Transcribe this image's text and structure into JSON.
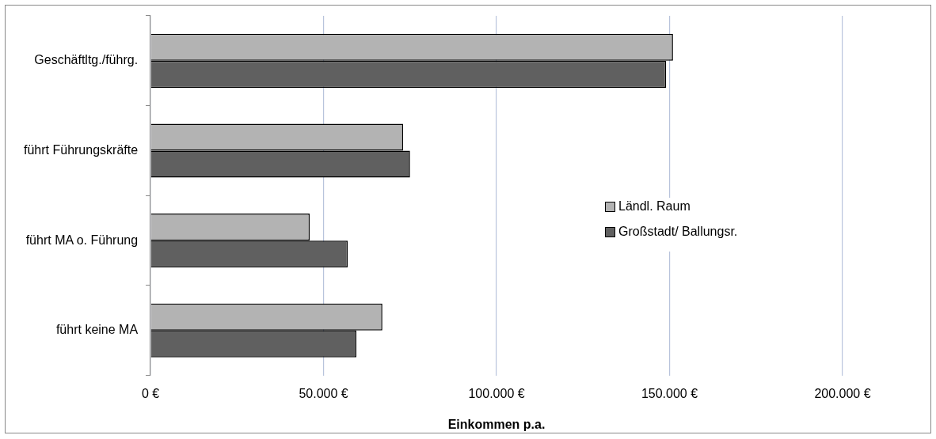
{
  "chart_data": {
    "type": "bar",
    "orientation": "horizontal",
    "xlabel": "Einkommen p.a.",
    "categories": [
      "Geschäftltg./führg.",
      "führt Führungskräfte",
      "führt MA o. Führung",
      "führt keine MA"
    ],
    "series": [
      {
        "name": "Ländl. Raum",
        "color": "#b3b3b3",
        "values": [
          151000,
          73000,
          46000,
          67000
        ]
      },
      {
        "name": "Großstadt/ Ballungsr.",
        "color": "#606060",
        "values": [
          149000,
          75000,
          57000,
          59500
        ]
      }
    ],
    "xlim": [
      0,
      200000
    ],
    "xticks": [
      {
        "value": 0,
        "label": "0 €"
      },
      {
        "value": 50000,
        "label": "50.000 €"
      },
      {
        "value": 100000,
        "label": "100.000 €"
      },
      {
        "value": 150000,
        "label": "150.000 €"
      },
      {
        "value": 200000,
        "label": "200.000 €"
      }
    ],
    "grid": "x",
    "legend": "right"
  }
}
